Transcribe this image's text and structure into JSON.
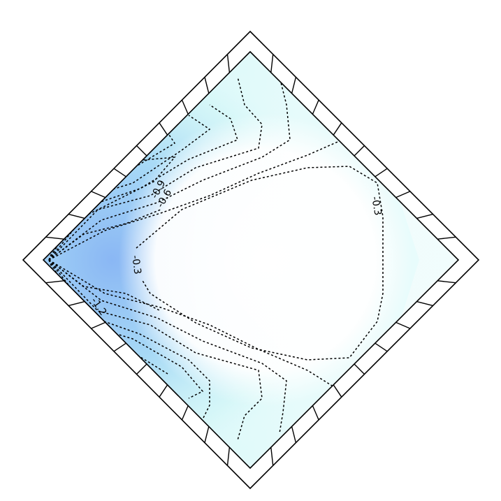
{
  "chart_data": {
    "type": "heatmap",
    "title": "",
    "xlabel": "",
    "ylabel": "",
    "grid": false,
    "legend": "none",
    "colormap": [
      "#ffffff",
      "#eafcfc",
      "#c8f4f6",
      "#a8daf6",
      "#8ab7f4"
    ],
    "contour_labels": [
      "-0.3",
      "-0.3",
      "-0.6",
      "-0.9",
      "-1.2"
    ]
  }
}
